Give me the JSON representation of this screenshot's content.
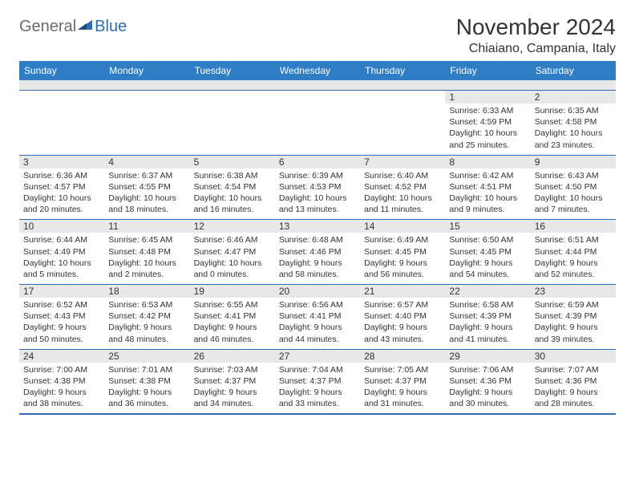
{
  "logo": {
    "part1": "General",
    "part2": "Blue"
  },
  "title": "November 2024",
  "location": "Chiaiano, Campania, Italy",
  "colors": {
    "header_bg": "#2f7dc4",
    "border": "#2f6db3",
    "shade": "#e8e8e8",
    "text": "#333333",
    "logo_grey": "#6b6b6b",
    "logo_blue": "#2f6db3"
  },
  "dayNames": [
    "Sunday",
    "Monday",
    "Tuesday",
    "Wednesday",
    "Thursday",
    "Friday",
    "Saturday"
  ],
  "weeks": [
    [
      {
        "n": "",
        "lines": []
      },
      {
        "n": "",
        "lines": []
      },
      {
        "n": "",
        "lines": []
      },
      {
        "n": "",
        "lines": []
      },
      {
        "n": "",
        "lines": []
      },
      {
        "n": "1",
        "lines": [
          "Sunrise: 6:33 AM",
          "Sunset: 4:59 PM",
          "Daylight: 10 hours and 25 minutes."
        ]
      },
      {
        "n": "2",
        "lines": [
          "Sunrise: 6:35 AM",
          "Sunset: 4:58 PM",
          "Daylight: 10 hours and 23 minutes."
        ]
      }
    ],
    [
      {
        "n": "3",
        "lines": [
          "Sunrise: 6:36 AM",
          "Sunset: 4:57 PM",
          "Daylight: 10 hours and 20 minutes."
        ]
      },
      {
        "n": "4",
        "lines": [
          "Sunrise: 6:37 AM",
          "Sunset: 4:55 PM",
          "Daylight: 10 hours and 18 minutes."
        ]
      },
      {
        "n": "5",
        "lines": [
          "Sunrise: 6:38 AM",
          "Sunset: 4:54 PM",
          "Daylight: 10 hours and 16 minutes."
        ]
      },
      {
        "n": "6",
        "lines": [
          "Sunrise: 6:39 AM",
          "Sunset: 4:53 PM",
          "Daylight: 10 hours and 13 minutes."
        ]
      },
      {
        "n": "7",
        "lines": [
          "Sunrise: 6:40 AM",
          "Sunset: 4:52 PM",
          "Daylight: 10 hours and 11 minutes."
        ]
      },
      {
        "n": "8",
        "lines": [
          "Sunrise: 6:42 AM",
          "Sunset: 4:51 PM",
          "Daylight: 10 hours and 9 minutes."
        ]
      },
      {
        "n": "9",
        "lines": [
          "Sunrise: 6:43 AM",
          "Sunset: 4:50 PM",
          "Daylight: 10 hours and 7 minutes."
        ]
      }
    ],
    [
      {
        "n": "10",
        "lines": [
          "Sunrise: 6:44 AM",
          "Sunset: 4:49 PM",
          "Daylight: 10 hours and 5 minutes."
        ]
      },
      {
        "n": "11",
        "lines": [
          "Sunrise: 6:45 AM",
          "Sunset: 4:48 PM",
          "Daylight: 10 hours and 2 minutes."
        ]
      },
      {
        "n": "12",
        "lines": [
          "Sunrise: 6:46 AM",
          "Sunset: 4:47 PM",
          "Daylight: 10 hours and 0 minutes."
        ]
      },
      {
        "n": "13",
        "lines": [
          "Sunrise: 6:48 AM",
          "Sunset: 4:46 PM",
          "Daylight: 9 hours and 58 minutes."
        ]
      },
      {
        "n": "14",
        "lines": [
          "Sunrise: 6:49 AM",
          "Sunset: 4:45 PM",
          "Daylight: 9 hours and 56 minutes."
        ]
      },
      {
        "n": "15",
        "lines": [
          "Sunrise: 6:50 AM",
          "Sunset: 4:45 PM",
          "Daylight: 9 hours and 54 minutes."
        ]
      },
      {
        "n": "16",
        "lines": [
          "Sunrise: 6:51 AM",
          "Sunset: 4:44 PM",
          "Daylight: 9 hours and 52 minutes."
        ]
      }
    ],
    [
      {
        "n": "17",
        "lines": [
          "Sunrise: 6:52 AM",
          "Sunset: 4:43 PM",
          "Daylight: 9 hours and 50 minutes."
        ]
      },
      {
        "n": "18",
        "lines": [
          "Sunrise: 6:53 AM",
          "Sunset: 4:42 PM",
          "Daylight: 9 hours and 48 minutes."
        ]
      },
      {
        "n": "19",
        "lines": [
          "Sunrise: 6:55 AM",
          "Sunset: 4:41 PM",
          "Daylight: 9 hours and 46 minutes."
        ]
      },
      {
        "n": "20",
        "lines": [
          "Sunrise: 6:56 AM",
          "Sunset: 4:41 PM",
          "Daylight: 9 hours and 44 minutes."
        ]
      },
      {
        "n": "21",
        "lines": [
          "Sunrise: 6:57 AM",
          "Sunset: 4:40 PM",
          "Daylight: 9 hours and 43 minutes."
        ]
      },
      {
        "n": "22",
        "lines": [
          "Sunrise: 6:58 AM",
          "Sunset: 4:39 PM",
          "Daylight: 9 hours and 41 minutes."
        ]
      },
      {
        "n": "23",
        "lines": [
          "Sunrise: 6:59 AM",
          "Sunset: 4:39 PM",
          "Daylight: 9 hours and 39 minutes."
        ]
      }
    ],
    [
      {
        "n": "24",
        "lines": [
          "Sunrise: 7:00 AM",
          "Sunset: 4:38 PM",
          "Daylight: 9 hours and 38 minutes."
        ]
      },
      {
        "n": "25",
        "lines": [
          "Sunrise: 7:01 AM",
          "Sunset: 4:38 PM",
          "Daylight: 9 hours and 36 minutes."
        ]
      },
      {
        "n": "26",
        "lines": [
          "Sunrise: 7:03 AM",
          "Sunset: 4:37 PM",
          "Daylight: 9 hours and 34 minutes."
        ]
      },
      {
        "n": "27",
        "lines": [
          "Sunrise: 7:04 AM",
          "Sunset: 4:37 PM",
          "Daylight: 9 hours and 33 minutes."
        ]
      },
      {
        "n": "28",
        "lines": [
          "Sunrise: 7:05 AM",
          "Sunset: 4:37 PM",
          "Daylight: 9 hours and 31 minutes."
        ]
      },
      {
        "n": "29",
        "lines": [
          "Sunrise: 7:06 AM",
          "Sunset: 4:36 PM",
          "Daylight: 9 hours and 30 minutes."
        ]
      },
      {
        "n": "30",
        "lines": [
          "Sunrise: 7:07 AM",
          "Sunset: 4:36 PM",
          "Daylight: 9 hours and 28 minutes."
        ]
      }
    ]
  ]
}
